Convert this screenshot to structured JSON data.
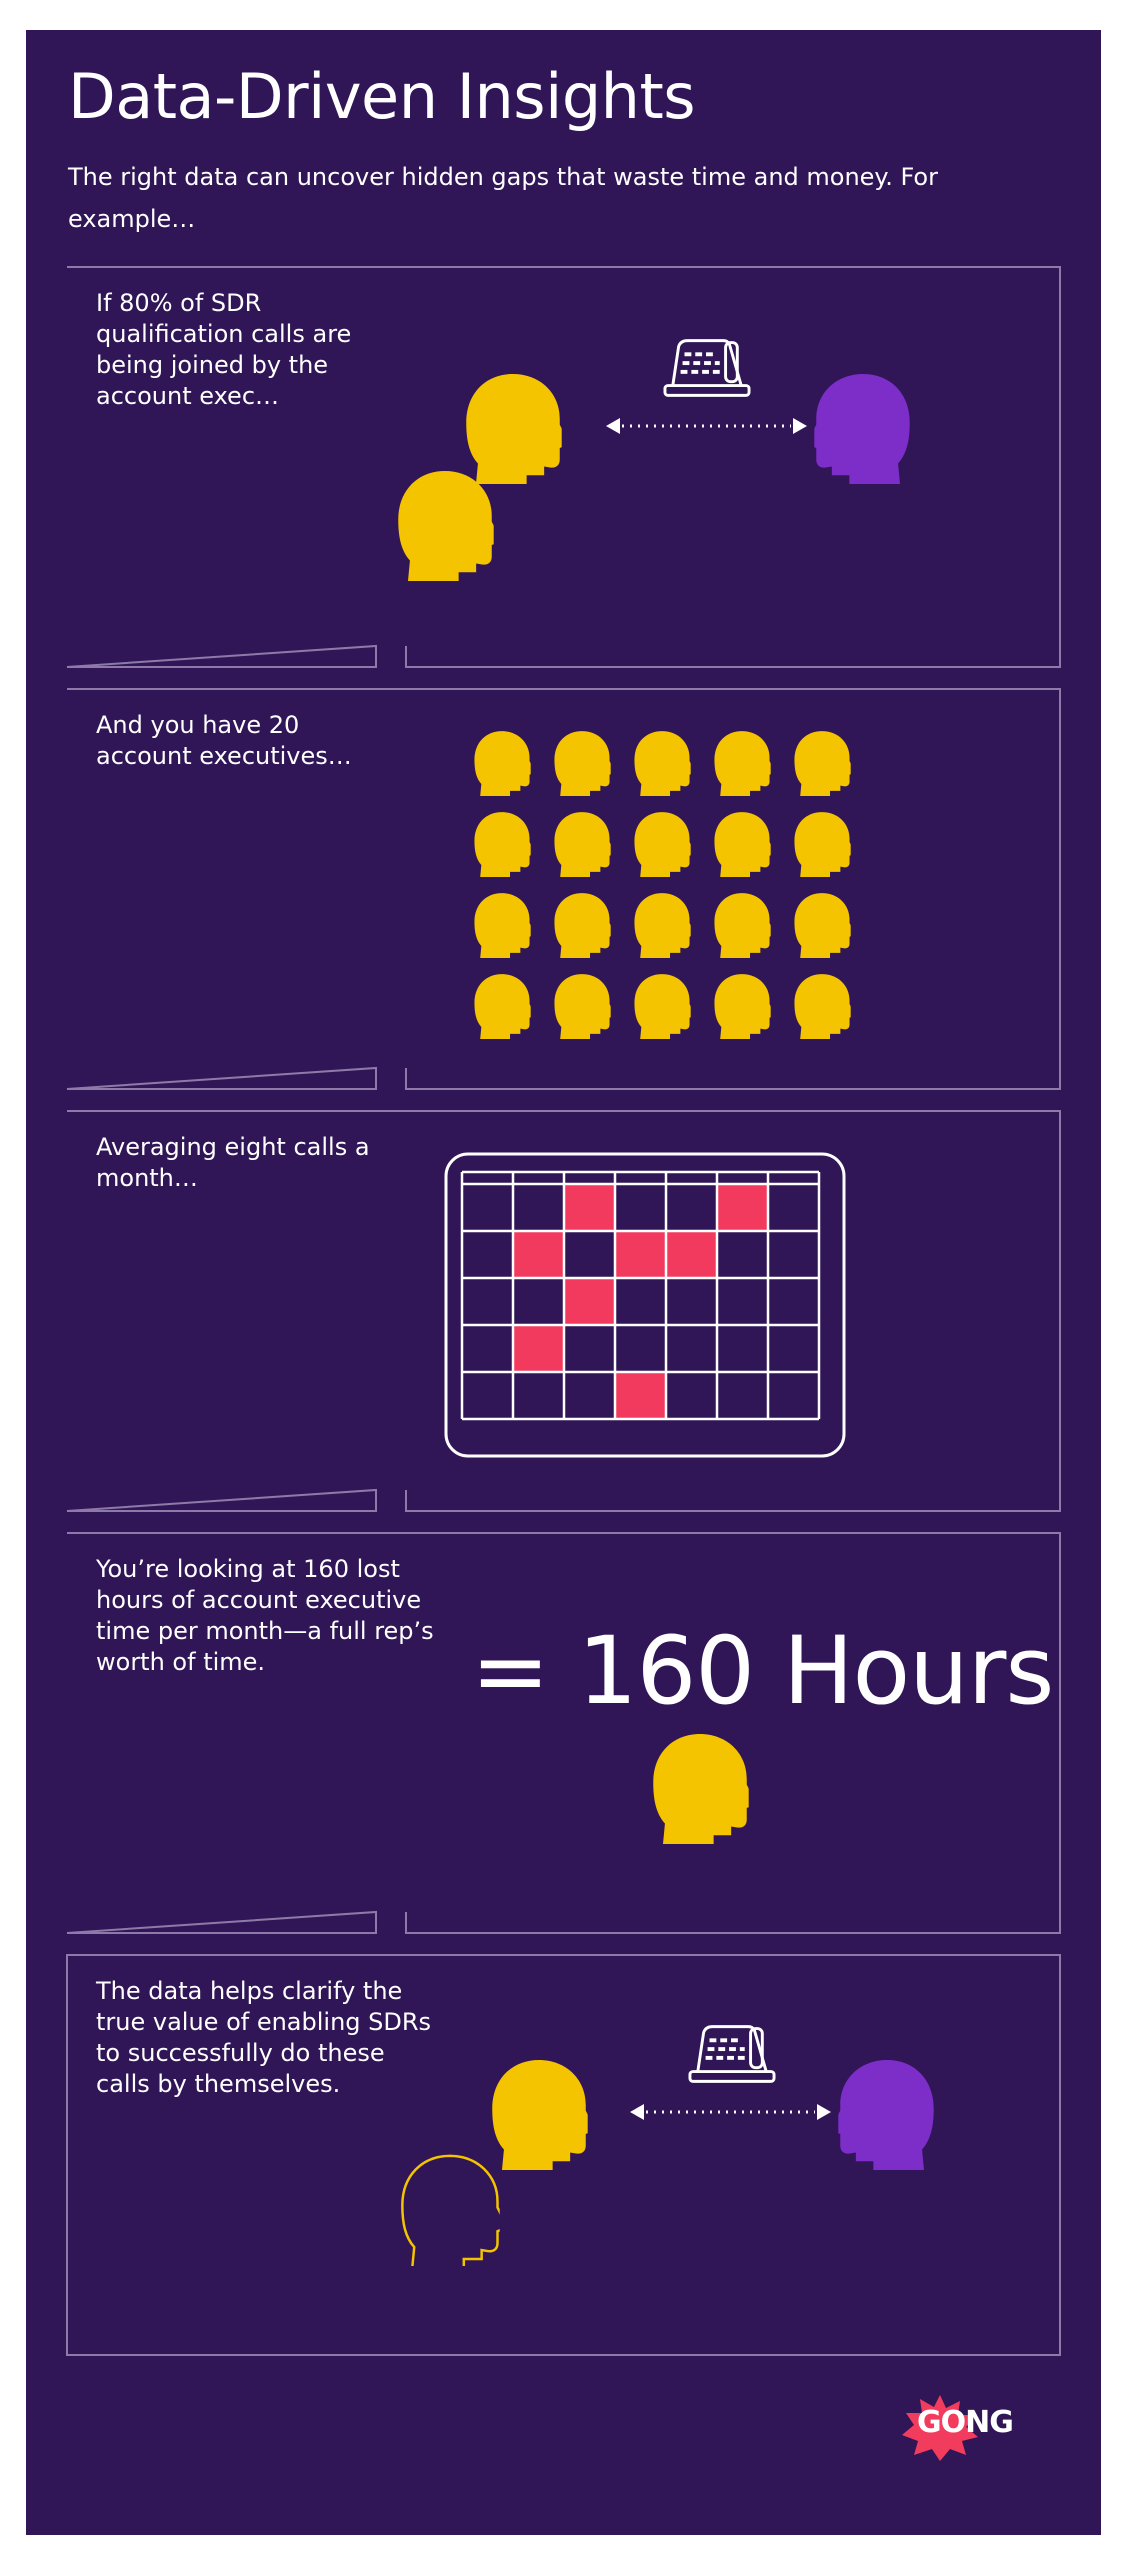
{
  "header": {
    "title": "Data-Driven Insights",
    "subtitle": "The right data can uncover hidden gaps that waste time and money. For example…"
  },
  "panels": [
    {
      "caption": "If 80% of SDR qualification calls are being joined by the account exec…"
    },
    {
      "caption": "And you have 20 account executives…",
      "head_count": 20
    },
    {
      "caption": "Averaging eight calls a month…",
      "calendar_marked_days": 8
    },
    {
      "caption": "You’re looking at 160 lost hours of account executive time per month—a full rep’s worth of time.",
      "result": "= 160 Hours"
    },
    {
      "caption": "The data helps clarify the true value of enabling SDRs to successfully do these calls by themselves."
    }
  ],
  "brand": {
    "logo_text": "GONG"
  },
  "colors": {
    "background": "#301656",
    "frame": "#8e7aa8",
    "account_exec": "#f5c400",
    "sdr": "#7d2dc8",
    "calendar_mark": "#f13a5e",
    "logo_burst": "#f23c5d"
  }
}
